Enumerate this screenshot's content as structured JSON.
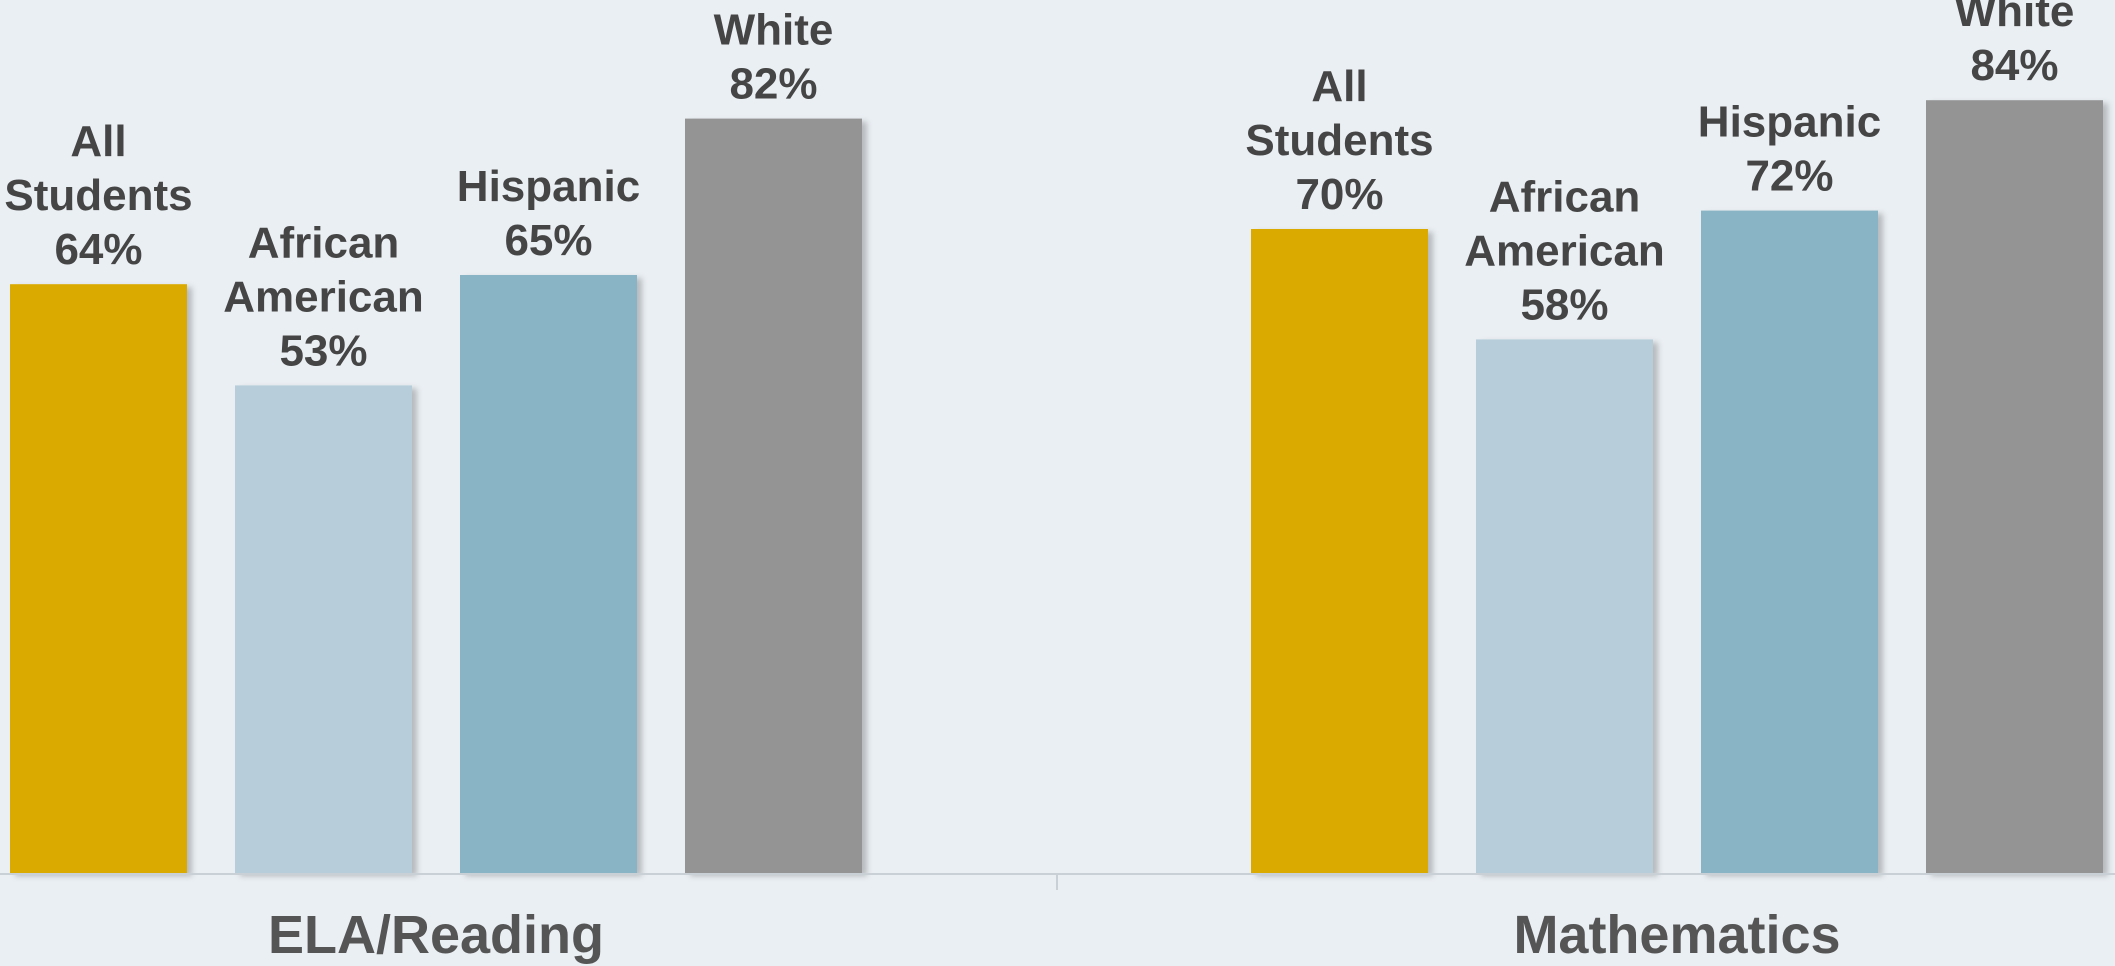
{
  "chart_data": {
    "type": "bar",
    "categories": [
      "ELA/Reading",
      "Mathematics"
    ],
    "ylim": [
      0,
      100
    ],
    "grid": false,
    "title": "",
    "xlabel": "",
    "ylabel": "",
    "series": [
      {
        "name": "All Students",
        "label_lines": [
          "All",
          "Students"
        ],
        "color": "#dbaa00",
        "values": [
          64,
          70
        ],
        "value_labels": [
          "64%",
          "70%"
        ]
      },
      {
        "name": "African American",
        "label_lines": [
          "African",
          "American"
        ],
        "color": "#b7ceda",
        "values": [
          53,
          58
        ],
        "value_labels": [
          "53%",
          "58%"
        ]
      },
      {
        "name": "Hispanic",
        "label_lines": [
          "Hispanic"
        ],
        "color": "#88b4c6",
        "values": [
          65,
          72
        ],
        "value_labels": [
          "65%",
          "72%"
        ]
      },
      {
        "name": "White",
        "label_lines": [
          "White"
        ],
        "color": "#949494",
        "values": [
          82,
          84
        ],
        "value_labels": [
          "82%",
          "84%"
        ]
      }
    ],
    "colors": {
      "background": "#eaeff3",
      "axis": "#c9d0d6",
      "label_text": "#454545",
      "group_text": "#555555"
    }
  }
}
